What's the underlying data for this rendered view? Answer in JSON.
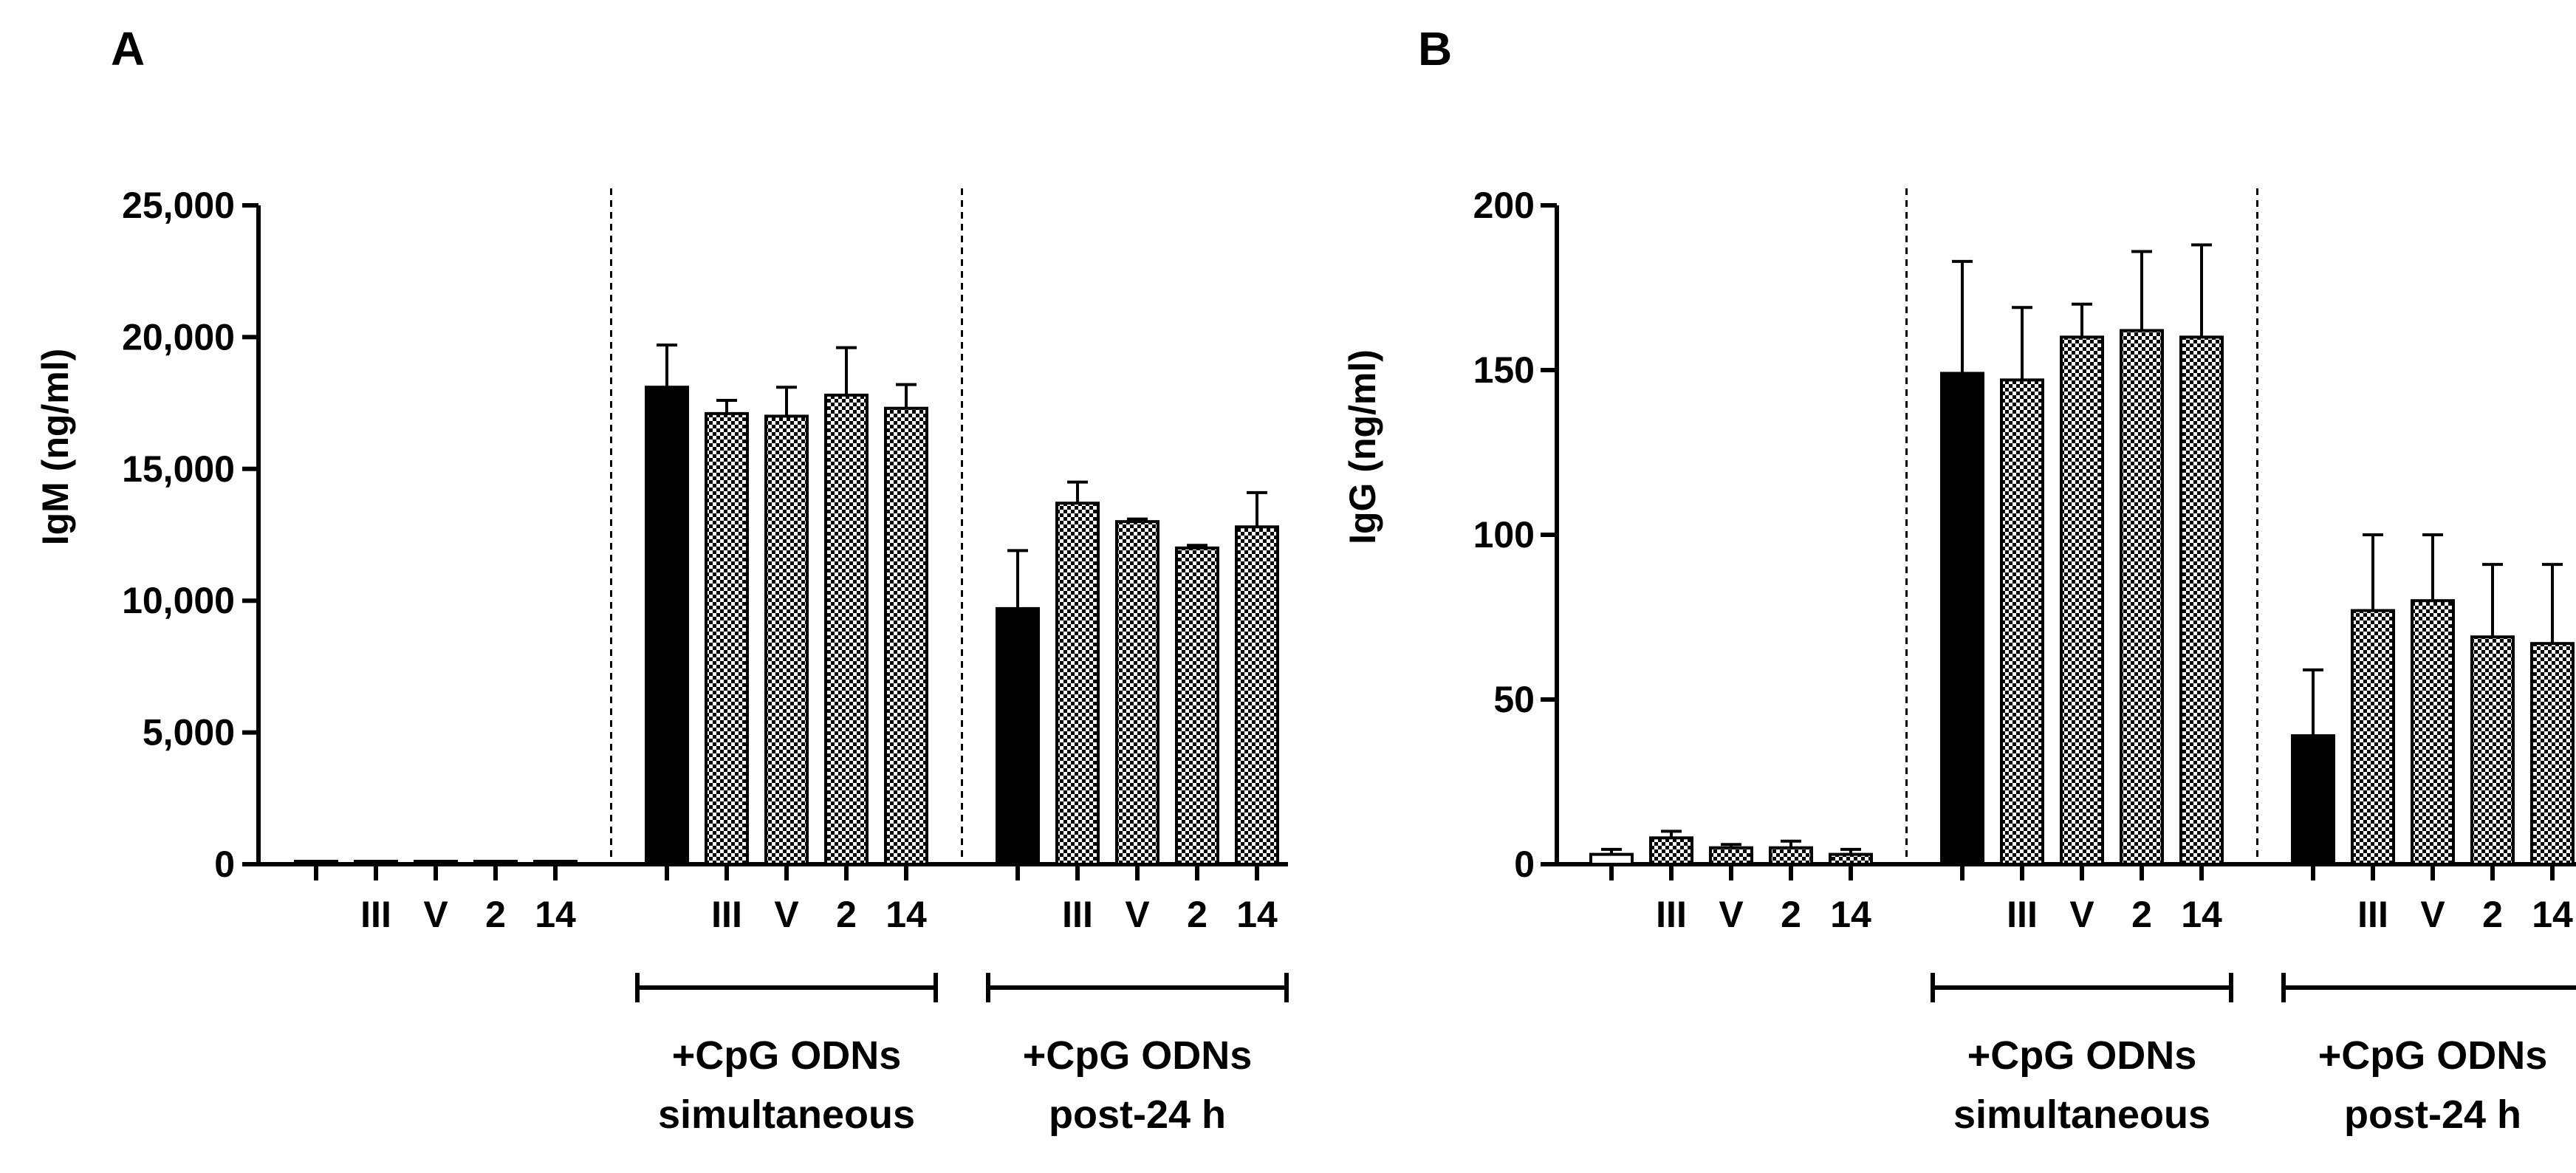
{
  "chart_data": [
    {
      "panel": "A",
      "type": "bar",
      "ylabel": "IgM (ng/ml)",
      "ylim": [
        0,
        25000
      ],
      "yticks": [
        0,
        5000,
        10000,
        15000,
        20000,
        25000
      ],
      "ytick_labels": [
        "0",
        "5,000",
        "10,000",
        "15,000",
        "20,000",
        "25,000"
      ],
      "groups": [
        {
          "name": "",
          "categories": [
            "",
            "III",
            "V",
            "2",
            "14"
          ],
          "values": [
            100,
            100,
            100,
            100,
            100
          ],
          "errors": [
            0,
            0,
            0,
            0,
            0
          ],
          "fill": [
            "white",
            "hatch",
            "hatch",
            "hatch",
            "hatch"
          ]
        },
        {
          "name": "+CpG ODNs simultaneous",
          "label_lines": [
            "+CpG ODNs",
            "simultaneous"
          ],
          "categories": [
            "",
            "III",
            "V",
            "2",
            "14"
          ],
          "values": [
            18100,
            17100,
            17000,
            17800,
            17300
          ],
          "errors": [
            1600,
            500,
            1100,
            1800,
            900
          ],
          "fill": [
            "black",
            "hatch",
            "hatch",
            "hatch",
            "hatch"
          ]
        },
        {
          "name": "+CpG ODNs post-24 h",
          "label_lines": [
            "+CpG ODNs",
            "post-24 h"
          ],
          "categories": [
            "",
            "III",
            "V",
            "2",
            "14"
          ],
          "values": [
            9700,
            13700,
            13000,
            12000,
            12800
          ],
          "errors": [
            2200,
            800,
            100,
            100,
            1300
          ],
          "fill": [
            "black",
            "hatch",
            "hatch",
            "hatch",
            "hatch"
          ]
        }
      ]
    },
    {
      "panel": "B",
      "type": "bar",
      "ylabel": "IgG (ng/ml)",
      "ylim": [
        0,
        200
      ],
      "yticks": [
        0,
        50,
        100,
        150,
        200
      ],
      "ytick_labels": [
        "0",
        "50",
        "100",
        "150",
        "200"
      ],
      "groups": [
        {
          "name": "",
          "categories": [
            "",
            "III",
            "V",
            "2",
            "14"
          ],
          "values": [
            3,
            8,
            5,
            5,
            3
          ],
          "errors": [
            1.5,
            2,
            1,
            2,
            1.5
          ],
          "fill": [
            "white",
            "hatch",
            "hatch",
            "hatch",
            "hatch"
          ]
        },
        {
          "name": "+CpG ODNs simultaneous",
          "label_lines": [
            "+CpG ODNs",
            "simultaneous"
          ],
          "categories": [
            "",
            "III",
            "V",
            "2",
            "14"
          ],
          "values": [
            149,
            147,
            160,
            162,
            160
          ],
          "errors": [
            34,
            22,
            10,
            24,
            28
          ],
          "fill": [
            "black",
            "hatch",
            "hatch",
            "hatch",
            "hatch"
          ]
        },
        {
          "name": "+CpG ODNs post-24 h",
          "label_lines": [
            "+CpG ODNs",
            "post-24 h"
          ],
          "categories": [
            "",
            "III",
            "V",
            "2",
            "14"
          ],
          "values": [
            39,
            77,
            80,
            69,
            67
          ],
          "errors": [
            20,
            23,
            20,
            22,
            24
          ],
          "fill": [
            "black",
            "hatch",
            "hatch",
            "hatch",
            "hatch"
          ]
        }
      ]
    }
  ]
}
